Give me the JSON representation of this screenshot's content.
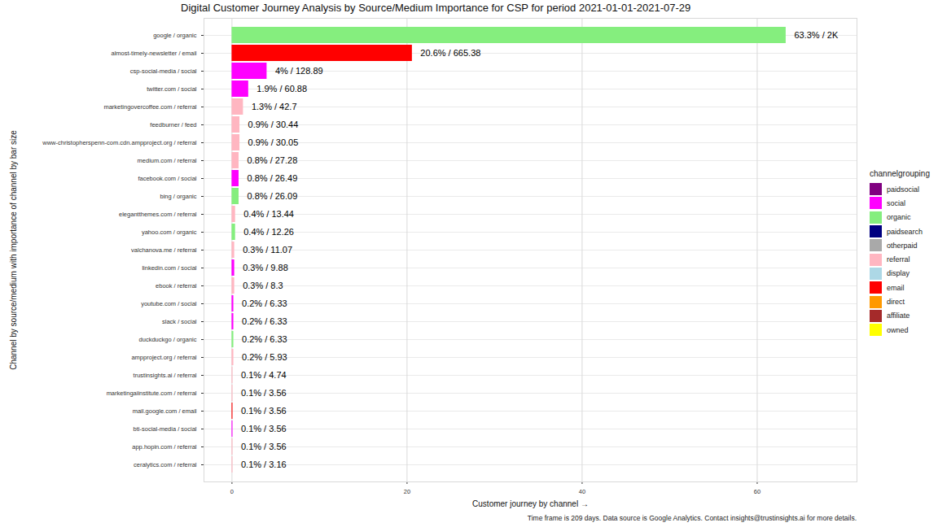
{
  "chart_data": {
    "type": "bar",
    "orientation": "horizontal",
    "title": "Digital Customer Journey Analysis by Source/Medium Importance for CSP for period 2021-01-01-2021-07-29",
    "caption": "Time frame is 209 days. Data source is Google Analytics. Contact insights@trustinsights.ai for more details.",
    "x_label": "Customer journey by channel",
    "y_label": "Channel by source/medium with importance of channel by bar size",
    "legend_title": "channelgrouping",
    "legend": "right",
    "grid": true,
    "data_labels": true,
    "xlim": [
      -3.2,
      71.4
    ],
    "xticks": [
      0,
      20,
      40,
      60
    ],
    "categories": [
      "google / organic",
      "almost-timely-newsletter / email",
      "csp-social-media / social",
      "twitter.com / social",
      "marketingovercoffee.com / referral",
      "feedburner / feed",
      "www-christopherspenn-com.cdn.ampproject.org / referral",
      "medium.com / referral",
      "facebook.com / social",
      "bing / organic",
      "elegantthemes.com / referral",
      "yahoo.com / organic",
      "valchanova.me / referral",
      "linkedin.com / social",
      "ebook / referral",
      "youtube.com / social",
      "slack / social",
      "duckduckgo / organic",
      "ampproject.org / referral",
      "trustinsights.ai / referral",
      "marketingaiinstitute.com / referral",
      "mail.google.com / email",
      "bti-social-media / social",
      "app.hopin.com / referral",
      "ceralytics.com / referral"
    ],
    "series": [
      {
        "name": "paidsocial",
        "color": "#800080",
        "values": [
          null,
          null,
          null,
          null,
          null,
          null,
          null,
          null,
          null,
          null,
          null,
          null,
          null,
          null,
          null,
          null,
          null,
          null,
          null,
          null,
          null,
          null,
          null,
          null,
          null
        ],
        "value_labels": [
          null,
          null,
          null,
          null,
          null,
          null,
          null,
          null,
          null,
          null,
          null,
          null,
          null,
          null,
          null,
          null,
          null,
          null,
          null,
          null,
          null,
          null,
          null,
          null,
          null
        ]
      },
      {
        "name": "social",
        "color": "#FF00FF",
        "values": [
          null,
          null,
          4,
          1.9,
          null,
          null,
          null,
          null,
          0.8,
          null,
          null,
          null,
          null,
          0.3,
          null,
          0.2,
          0.2,
          null,
          null,
          null,
          null,
          null,
          0.1,
          null,
          null
        ],
        "value_labels": [
          null,
          null,
          "4% / 128.89",
          "1.9% / 60.88",
          null,
          null,
          null,
          null,
          "0.8% / 26.49",
          null,
          null,
          null,
          null,
          "0.3% / 9.88",
          null,
          "0.2% / 6.33",
          "0.2% / 6.33",
          null,
          null,
          null,
          null,
          null,
          "0.1% / 3.56",
          null,
          null
        ]
      },
      {
        "name": "organic",
        "color": "#85EE7E",
        "values": [
          63.3,
          null,
          null,
          null,
          null,
          null,
          null,
          null,
          null,
          0.8,
          null,
          0.4,
          null,
          null,
          null,
          null,
          null,
          0.2,
          null,
          null,
          null,
          null,
          null,
          null,
          null
        ],
        "value_labels": [
          "63.3% / 2K",
          null,
          null,
          null,
          null,
          null,
          null,
          null,
          null,
          "0.8% / 26.09",
          null,
          "0.4% / 12.26",
          null,
          null,
          null,
          null,
          null,
          "0.2% / 6.33",
          null,
          null,
          null,
          null,
          null,
          null,
          null
        ]
      },
      {
        "name": "paidsearch",
        "color": "#000080",
        "values": [
          null,
          null,
          null,
          null,
          null,
          null,
          null,
          null,
          null,
          null,
          null,
          null,
          null,
          null,
          null,
          null,
          null,
          null,
          null,
          null,
          null,
          null,
          null,
          null,
          null
        ],
        "value_labels": [
          null,
          null,
          null,
          null,
          null,
          null,
          null,
          null,
          null,
          null,
          null,
          null,
          null,
          null,
          null,
          null,
          null,
          null,
          null,
          null,
          null,
          null,
          null,
          null,
          null
        ]
      },
      {
        "name": "otherpaid",
        "color": "#A9A9A9",
        "values": [
          null,
          null,
          null,
          null,
          null,
          null,
          null,
          null,
          null,
          null,
          null,
          null,
          null,
          null,
          null,
          null,
          null,
          null,
          null,
          null,
          null,
          null,
          null,
          null,
          null
        ],
        "value_labels": [
          null,
          null,
          null,
          null,
          null,
          null,
          null,
          null,
          null,
          null,
          null,
          null,
          null,
          null,
          null,
          null,
          null,
          null,
          null,
          null,
          null,
          null,
          null,
          null,
          null
        ]
      },
      {
        "name": "referral",
        "color": "#FFB6C1",
        "values": [
          null,
          null,
          null,
          null,
          1.3,
          0.9,
          0.9,
          0.8,
          null,
          null,
          0.4,
          null,
          0.3,
          null,
          0.3,
          null,
          null,
          null,
          0.2,
          0.1,
          0.1,
          null,
          null,
          0.1,
          0.1
        ],
        "value_labels": [
          null,
          null,
          null,
          null,
          "1.3% / 42.7",
          "0.9% / 30.44",
          "0.9% / 30.05",
          "0.8% / 27.28",
          null,
          null,
          "0.4% / 13.44",
          null,
          "0.3% / 11.07",
          null,
          "0.3% / 8.3",
          null,
          null,
          null,
          "0.2% / 5.93",
          "0.1% / 4.74",
          "0.1% / 3.56",
          null,
          null,
          "0.1% / 3.56",
          "0.1% / 3.16"
        ]
      },
      {
        "name": "display",
        "color": "#ADD8E6",
        "values": [
          null,
          null,
          null,
          null,
          null,
          null,
          null,
          null,
          null,
          null,
          null,
          null,
          null,
          null,
          null,
          null,
          null,
          null,
          null,
          null,
          null,
          null,
          null,
          null,
          null
        ],
        "value_labels": [
          null,
          null,
          null,
          null,
          null,
          null,
          null,
          null,
          null,
          null,
          null,
          null,
          null,
          null,
          null,
          null,
          null,
          null,
          null,
          null,
          null,
          null,
          null,
          null,
          null
        ]
      },
      {
        "name": "email",
        "color": "#FF0000",
        "values": [
          null,
          20.6,
          null,
          null,
          null,
          null,
          null,
          null,
          null,
          null,
          null,
          null,
          null,
          null,
          null,
          null,
          null,
          null,
          null,
          null,
          null,
          0.1,
          null,
          null,
          null
        ],
        "value_labels": [
          null,
          "20.6% / 665.38",
          null,
          null,
          null,
          null,
          null,
          null,
          null,
          null,
          null,
          null,
          null,
          null,
          null,
          null,
          null,
          null,
          null,
          null,
          null,
          "0.1% / 3.56",
          null,
          null,
          null
        ]
      },
      {
        "name": "direct",
        "color": "#FF9900",
        "values": [
          null,
          null,
          null,
          null,
          null,
          null,
          null,
          null,
          null,
          null,
          null,
          null,
          null,
          null,
          null,
          null,
          null,
          null,
          null,
          null,
          null,
          null,
          null,
          null,
          null
        ],
        "value_labels": [
          null,
          null,
          null,
          null,
          null,
          null,
          null,
          null,
          null,
          null,
          null,
          null,
          null,
          null,
          null,
          null,
          null,
          null,
          null,
          null,
          null,
          null,
          null,
          null,
          null
        ]
      },
      {
        "name": "affiliate",
        "color": "#A52A2A",
        "values": [
          null,
          null,
          null,
          null,
          null,
          null,
          null,
          null,
          null,
          null,
          null,
          null,
          null,
          null,
          null,
          null,
          null,
          null,
          null,
          null,
          null,
          null,
          null,
          null,
          null
        ],
        "value_labels": [
          null,
          null,
          null,
          null,
          null,
          null,
          null,
          null,
          null,
          null,
          null,
          null,
          null,
          null,
          null,
          null,
          null,
          null,
          null,
          null,
          null,
          null,
          null,
          null,
          null
        ]
      },
      {
        "name": "owned",
        "color": "#FFFF00",
        "values": [
          null,
          null,
          null,
          null,
          null,
          null,
          null,
          null,
          null,
          null,
          null,
          null,
          null,
          null,
          null,
          null,
          null,
          null,
          null,
          null,
          null,
          null,
          null,
          null,
          null
        ],
        "value_labels": [
          null,
          null,
          null,
          null,
          null,
          null,
          null,
          null,
          null,
          null,
          null,
          null,
          null,
          null,
          null,
          null,
          null,
          null,
          null,
          null,
          null,
          null,
          null,
          null,
          null
        ]
      }
    ]
  }
}
